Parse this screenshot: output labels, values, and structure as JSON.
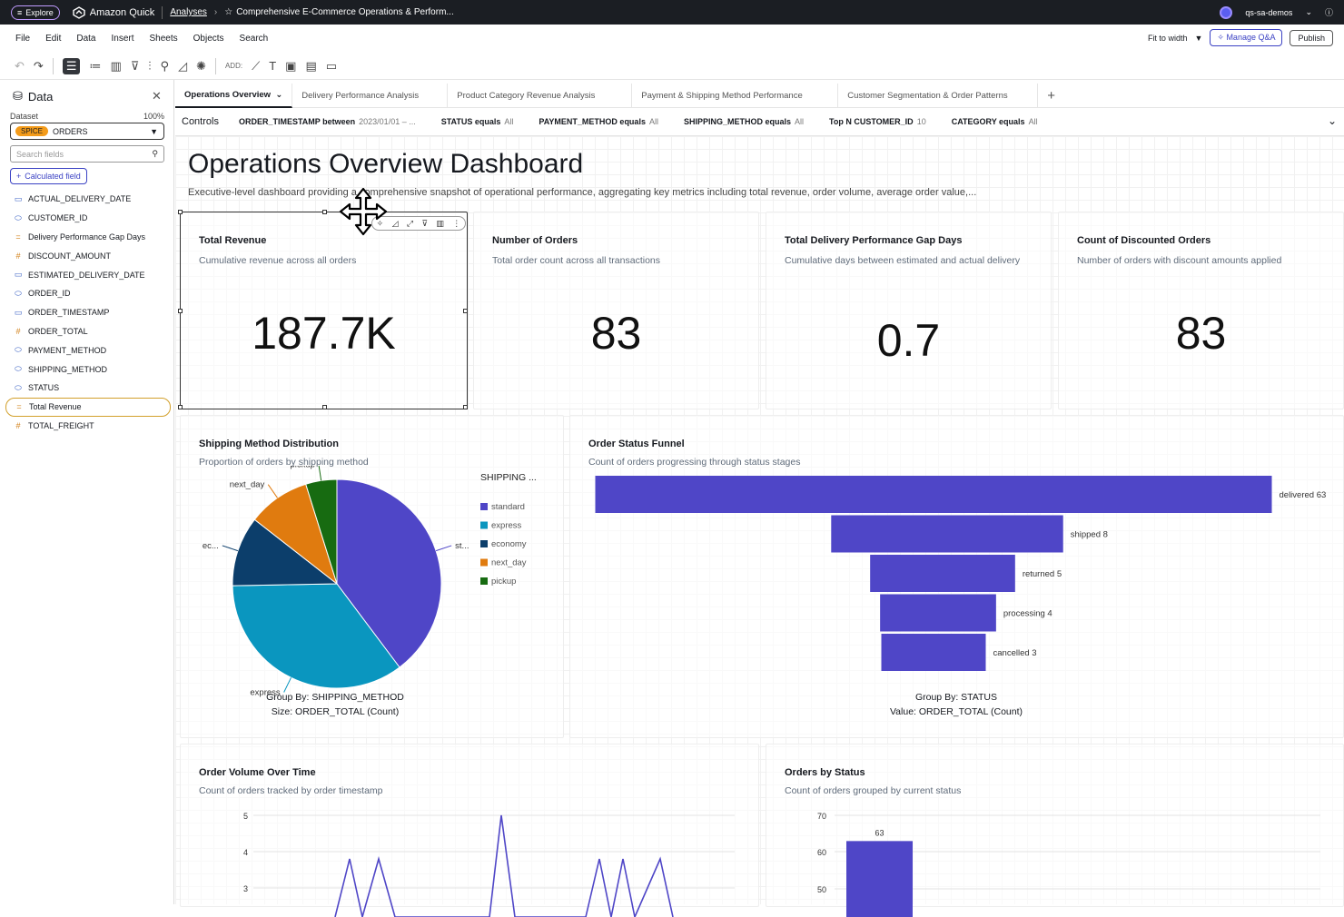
{
  "topbar": {
    "explore": "Explore",
    "brand": "Amazon Quick",
    "crumb": "Analyses",
    "title": "Comprehensive E-Commerce Operations & Perform...",
    "account": "qs-sa-demos"
  },
  "menu": [
    "File",
    "Edit",
    "Data",
    "Insert",
    "Sheets",
    "Objects",
    "Search"
  ],
  "menu_right": {
    "fit": "Fit to width",
    "manage": "Manage Q&A",
    "publish": "Publish"
  },
  "toolbar": {
    "add": "ADD:"
  },
  "sidebar": {
    "title": "Data",
    "dataset_label": "Dataset",
    "dataset_pct": "100%",
    "spice": "SPICE",
    "dataset": "ORDERS",
    "search_placeholder": "Search fields",
    "calc": "Calculated field",
    "fields": [
      {
        "icon": "date",
        "name": "ACTUAL_DELIVERY_DATE"
      },
      {
        "icon": "text",
        "name": "CUSTOMER_ID"
      },
      {
        "icon": "calc",
        "name": "Delivery Performance Gap Days"
      },
      {
        "icon": "num",
        "name": "DISCOUNT_AMOUNT"
      },
      {
        "icon": "date",
        "name": "ESTIMATED_DELIVERY_DATE"
      },
      {
        "icon": "text",
        "name": "ORDER_ID"
      },
      {
        "icon": "date",
        "name": "ORDER_TIMESTAMP"
      },
      {
        "icon": "num",
        "name": "ORDER_TOTAL"
      },
      {
        "icon": "text",
        "name": "PAYMENT_METHOD"
      },
      {
        "icon": "text",
        "name": "SHIPPING_METHOD"
      },
      {
        "icon": "text",
        "name": "STATUS"
      },
      {
        "icon": "calc",
        "name": "Total Revenue"
      },
      {
        "icon": "num",
        "name": "TOTAL_FREIGHT"
      }
    ]
  },
  "tabs": [
    "Operations Overview",
    "Delivery Performance Analysis",
    "Product Category Revenue Analysis",
    "Payment & Shipping Method Performance",
    "Customer Segmentation & Order Patterns"
  ],
  "controls": {
    "label": "Controls",
    "items": [
      {
        "k": "ORDER_TIMESTAMP between",
        "v": "2023/01/01 – ..."
      },
      {
        "k": "STATUS equals",
        "v": "All"
      },
      {
        "k": "PAYMENT_METHOD equals",
        "v": "All"
      },
      {
        "k": "SHIPPING_METHOD equals",
        "v": "All"
      },
      {
        "k": "Top N CUSTOMER_ID",
        "v": "10"
      },
      {
        "k": "CATEGORY equals",
        "v": "All"
      }
    ]
  },
  "dashboard": {
    "title": "Operations Overview Dashboard",
    "subtitle": "Executive-level dashboard providing a comprehensive snapshot of operational performance, aggregating key metrics including total revenue, order volume, average order value,..."
  },
  "kpis": [
    {
      "title": "Total Revenue",
      "subtitle": "Cumulative revenue across all orders",
      "value": "187.7K"
    },
    {
      "title": "Number of Orders",
      "subtitle": "Total order count across all transactions",
      "value": "83"
    },
    {
      "title": "Total Delivery Performance Gap Days",
      "subtitle": "Cumulative days between estimated and actual delivery",
      "value": "0.7"
    },
    {
      "title": "Count of Discounted Orders",
      "subtitle": "Number of orders with discount amounts applied",
      "value": "83"
    }
  ],
  "pie": {
    "title": "Shipping Method Distribution",
    "subtitle": "Proportion of orders by shipping method",
    "legend_title": "SHIPPING ...",
    "group_by": "Group By: SHIPPING_METHOD",
    "size": "Size: ORDER_TOTAL (Count)",
    "slice_labels": {
      "standard": "st...",
      "express": "express",
      "economy": "ec...",
      "next_day": "next_day",
      "pickup": "pickup"
    }
  },
  "funnel": {
    "title": "Order Status Funnel",
    "subtitle": "Count of orders progressing through status stages",
    "group_by": "Group By: STATUS",
    "value": "Value: ORDER_TOTAL (Count)"
  },
  "line": {
    "title": "Order Volume Over Time",
    "subtitle": "Count of orders tracked by order timestamp"
  },
  "bar": {
    "title": "Orders by Status",
    "subtitle": "Count of orders grouped by current status"
  },
  "colors": {
    "purple": "#4f46c7",
    "teal": "#0a96bf",
    "navy": "#0c3e6b",
    "orange": "#e07b0f",
    "green": "#176b11"
  },
  "chart_data": [
    {
      "type": "pie",
      "title": "Shipping Method Distribution",
      "categories": [
        "standard",
        "express",
        "economy",
        "next_day",
        "pickup"
      ],
      "values": [
        33,
        29,
        9,
        8,
        4
      ]
    },
    {
      "type": "bar",
      "title": "Order Status Funnel",
      "categories": [
        "delivered",
        "shipped",
        "returned",
        "processing",
        "cancelled"
      ],
      "values": [
        63,
        8,
        5,
        4,
        3
      ],
      "data_labels": [
        "delivered 63",
        "shipped 8",
        "returned 5",
        "processing 4",
        "cancelled 3"
      ]
    },
    {
      "type": "line",
      "title": "Order Volume Over Time",
      "y_ticks": [
        "5",
        "4",
        "3"
      ],
      "ylim": [
        3,
        5
      ]
    },
    {
      "type": "bar",
      "title": "Orders by Status",
      "y_ticks": [
        "70",
        "60",
        "50"
      ],
      "ylim": [
        50,
        70
      ],
      "values": [
        63
      ]
    }
  ]
}
